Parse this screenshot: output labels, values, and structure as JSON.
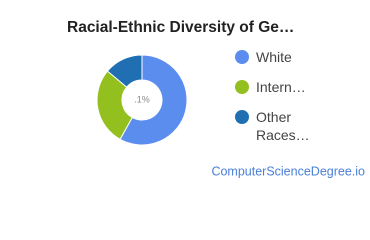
{
  "chart_data": {
    "type": "donut",
    "title": "Racial-Ethnic Diversity of Ge…",
    "center_label": ".1%",
    "series": [
      {
        "name": "White",
        "color": "#5b8def",
        "values": [
          58.1
        ]
      },
      {
        "name": "Intern…",
        "color": "#93c01f",
        "values": [
          28
        ]
      },
      {
        "name": "Other Races…",
        "color": "#1f6fb2",
        "values": [
          13.9
        ]
      }
    ],
    "footer": "ComputerScienceDegree.io"
  }
}
